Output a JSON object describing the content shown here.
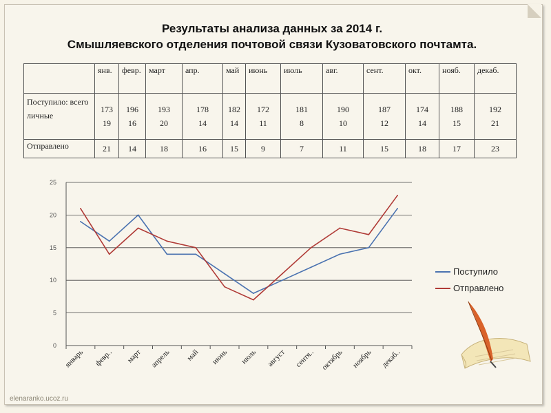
{
  "title": {
    "line1": "Результаты анализа данных за 2014 г.",
    "line2": "Смышляевского отделения почтовой связи Кузоватовского почтамта."
  },
  "table": {
    "months": [
      "янв.",
      "февр.",
      "март",
      "апр.",
      "май",
      "июнь",
      "июль",
      "авг.",
      "сент.",
      "окт.",
      "нояб.",
      "декаб."
    ],
    "row1_label": "Поступило: всего личные",
    "row1_total": [
      "173",
      "196",
      "193",
      "178",
      "182",
      "172",
      "181",
      "190",
      "187",
      "174",
      "188",
      "192"
    ],
    "row1_personal": [
      "19",
      "16",
      "20",
      "14",
      "14",
      "11",
      "8",
      "10",
      "12",
      "14",
      "15",
      "21"
    ],
    "row2_label": "Отправлено",
    "row2_values": [
      "21",
      "14",
      "18",
      "16",
      "15",
      "9",
      "7",
      "11",
      "15",
      "18",
      "17",
      "23"
    ]
  },
  "chart_data": {
    "type": "line",
    "categories": [
      "январь",
      "февр..",
      "март",
      "апрель",
      "май",
      "июнь",
      "июль",
      "август",
      "сентя..",
      "октябрь",
      "ноябрь",
      "декаб.."
    ],
    "series": [
      {
        "name": "Поступило",
        "color": "#4a72b0",
        "values": [
          19,
          16,
          20,
          14,
          14,
          11,
          8,
          10,
          12,
          14,
          15,
          21
        ]
      },
      {
        "name": "Отправлено",
        "color": "#b03b37",
        "values": [
          21,
          14,
          18,
          16,
          15,
          9,
          7,
          11,
          15,
          18,
          17,
          23
        ]
      }
    ],
    "ylim": [
      0,
      25
    ],
    "yticks": [
      "0",
      "5",
      "10",
      "15",
      "20",
      "25"
    ],
    "grid": true,
    "legend": "right"
  },
  "footer": {
    "watermark": "elenaranko.ucoz.ru"
  }
}
